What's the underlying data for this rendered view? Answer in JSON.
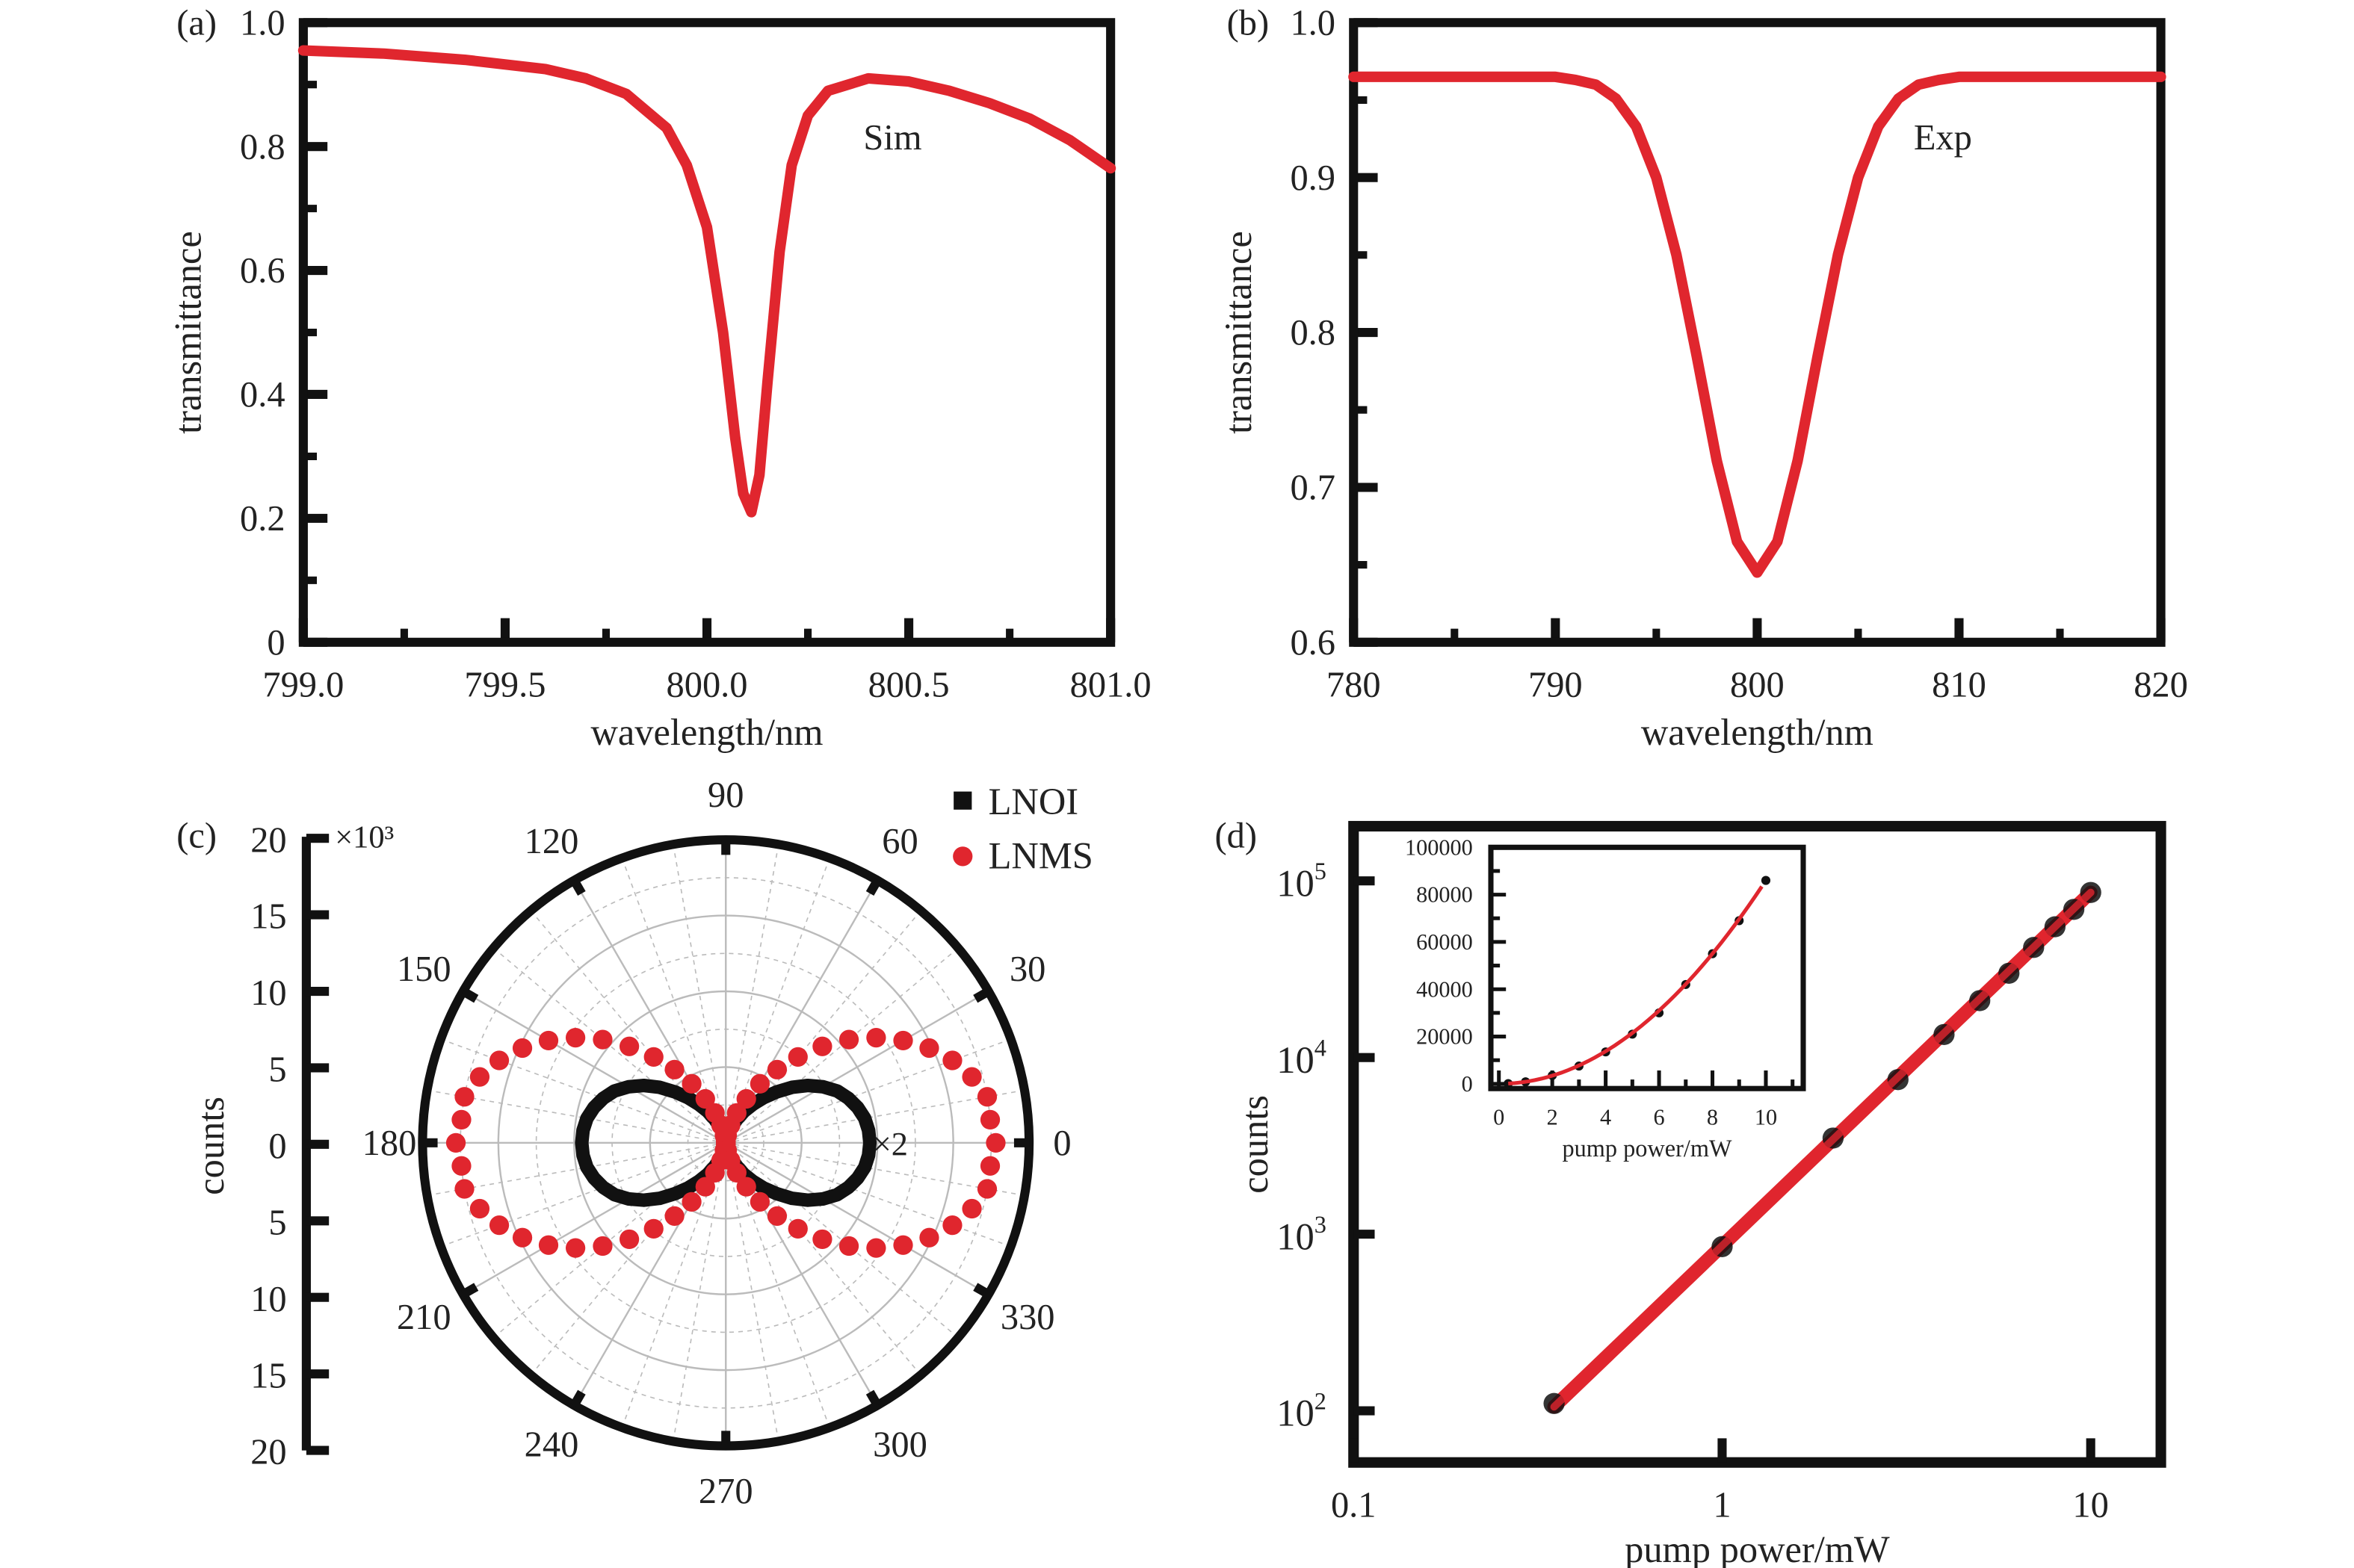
{
  "colors": {
    "curve": "#e0262e",
    "axis": "#111111",
    "marker_black": "#111111",
    "marker_red": "#e0262e",
    "grid": "#bbbbbb"
  },
  "chart_data": [
    {
      "id": "a",
      "panel_label": "(a)",
      "type": "line",
      "xlabel": "wavelength/nm",
      "ylabel": "transmittance",
      "annotation": "Sim",
      "xlim": [
        799.0,
        801.0
      ],
      "ylim": [
        0,
        1.0
      ],
      "xticks": [
        {
          "v": 799.0,
          "label": "799.0"
        },
        {
          "v": 799.5,
          "label": "799.5"
        },
        {
          "v": 800.0,
          "label": "800.0"
        },
        {
          "v": 800.5,
          "label": "800.5"
        },
        {
          "v": 801.0,
          "label": "801.0"
        }
      ],
      "xminor": [
        799.25,
        799.75,
        800.25,
        800.75
      ],
      "yticks": [
        {
          "v": 0,
          "label": "0"
        },
        {
          "v": 0.2,
          "label": "0.2"
        },
        {
          "v": 0.4,
          "label": "0.4"
        },
        {
          "v": 0.6,
          "label": "0.6"
        },
        {
          "v": 0.8,
          "label": "0.8"
        },
        {
          "v": 1.0,
          "label": "1.0"
        }
      ],
      "yminor": [
        0.1,
        0.3,
        0.5,
        0.7,
        0.9
      ],
      "x": [
        799.0,
        799.2,
        799.4,
        799.6,
        799.7,
        799.8,
        799.9,
        799.95,
        800.0,
        800.04,
        800.07,
        800.09,
        800.11,
        800.13,
        800.15,
        800.18,
        800.21,
        800.25,
        800.3,
        800.4,
        800.5,
        800.6,
        800.7,
        800.8,
        800.9,
        801.0
      ],
      "y": [
        0.955,
        0.95,
        0.94,
        0.925,
        0.91,
        0.885,
        0.83,
        0.77,
        0.67,
        0.5,
        0.33,
        0.24,
        0.21,
        0.27,
        0.42,
        0.63,
        0.77,
        0.85,
        0.89,
        0.91,
        0.905,
        0.89,
        0.87,
        0.845,
        0.81,
        0.765
      ]
    },
    {
      "id": "b",
      "panel_label": "(b)",
      "type": "line",
      "xlabel": "wavelength/nm",
      "ylabel": "transmittance",
      "annotation": "Exp",
      "xlim": [
        780,
        820
      ],
      "ylim": [
        0.6,
        1.0
      ],
      "xticks": [
        {
          "v": 780,
          "label": "780"
        },
        {
          "v": 790,
          "label": "790"
        },
        {
          "v": 800,
          "label": "800"
        },
        {
          "v": 810,
          "label": "810"
        },
        {
          "v": 820,
          "label": "820"
        }
      ],
      "xminor": [
        785,
        795,
        805,
        815
      ],
      "yticks": [
        {
          "v": 0.6,
          "label": "0.6"
        },
        {
          "v": 0.7,
          "label": "0.7"
        },
        {
          "v": 0.8,
          "label": "0.8"
        },
        {
          "v": 0.9,
          "label": "0.9"
        },
        {
          "v": 1.0,
          "label": "1.0"
        }
      ],
      "yminor": [
        0.65,
        0.75,
        0.85,
        0.95
      ],
      "x": [
        780,
        788,
        790,
        791,
        792,
        793,
        794,
        795,
        796,
        797,
        798,
        799,
        800,
        801,
        802,
        803,
        804,
        805,
        806,
        807,
        808,
        809,
        810,
        812,
        820
      ],
      "y": [
        0.965,
        0.965,
        0.965,
        0.963,
        0.96,
        0.951,
        0.933,
        0.9,
        0.85,
        0.785,
        0.717,
        0.665,
        0.645,
        0.665,
        0.717,
        0.785,
        0.85,
        0.9,
        0.933,
        0.951,
        0.96,
        0.963,
        0.965,
        0.965,
        0.965
      ]
    },
    {
      "id": "c",
      "panel_label": "(c)",
      "type": "polar",
      "ylabel": "counts",
      "radial_unit": "×10³",
      "scale_note": "×2",
      "rlim": [
        0,
        20
      ],
      "radial_axis_labels": [
        "20",
        "15",
        "10",
        "5",
        "0",
        "5",
        "10",
        "15",
        "20"
      ],
      "angle_labels": [
        {
          "v": 0,
          "label": "0"
        },
        {
          "v": 30,
          "label": "30"
        },
        {
          "v": 60,
          "label": "60"
        },
        {
          "v": 90,
          "label": "90"
        },
        {
          "v": 120,
          "label": "120"
        },
        {
          "v": 150,
          "label": "150"
        },
        {
          "v": 180,
          "label": "180"
        },
        {
          "v": 210,
          "label": "210"
        },
        {
          "v": 240,
          "label": "240"
        },
        {
          "v": 270,
          "label": "270"
        },
        {
          "v": 300,
          "label": "300"
        },
        {
          "v": 330,
          "label": "330"
        }
      ],
      "legend": [
        {
          "name": "LNOI",
          "marker": "square"
        },
        {
          "name": "LNMS",
          "marker": "circle"
        }
      ],
      "legend_position": "top-right",
      "angles_step_deg": 5,
      "series": [
        {
          "name": "LNOI",
          "quarter_values": [
            9.5,
            9.45,
            9.3,
            9.0,
            8.6,
            8.1,
            7.4,
            6.6,
            5.7,
            4.75,
            3.9,
            3.1,
            2.4,
            1.7,
            1.1,
            0.64,
            0.28,
            0.07,
            0
          ]
        },
        {
          "name": "LNMS",
          "quarter_values": [
            17.8,
            17.5,
            17.5,
            16.8,
            15.9,
            14.8,
            13.5,
            12.1,
            10.6,
            9.0,
            7.4,
            5.9,
            4.5,
            3.2,
            2.1,
            1.2,
            0.5,
            0.1,
            0
          ]
        }
      ]
    },
    {
      "id": "d",
      "panel_label": "(d)",
      "type": "scatter",
      "xscale": "log",
      "yscale": "log",
      "xlabel": "pump power/mW",
      "ylabel": "counts",
      "xlim": [
        0.1,
        15.5
      ],
      "ylim": [
        51,
        204000
      ],
      "xticks": [
        {
          "v": 0.1,
          "label": "0.1"
        },
        {
          "v": 1,
          "label": "1"
        },
        {
          "v": 10,
          "label": "10"
        }
      ],
      "yticks": [
        {
          "v": 100,
          "base": "10",
          "exp": "2"
        },
        {
          "v": 1000,
          "base": "10",
          "exp": "3"
        },
        {
          "v": 10000,
          "base": "10",
          "exp": "4"
        },
        {
          "v": 100000,
          "base": "10",
          "exp": "5"
        }
      ],
      "x": [
        0.35,
        1,
        2,
        3,
        4,
        5,
        6,
        7,
        8,
        9,
        10
      ],
      "y": [
        110,
        850,
        3500,
        7500,
        13500,
        21000,
        30000,
        42000,
        55000,
        69000,
        86000
      ],
      "fit_exponent": 2,
      "inset": {
        "xlabel": "pump power/mW",
        "xlim": [
          -0.3,
          11.4
        ],
        "ylim": [
          -2000,
          100000
        ],
        "xticks": [
          {
            "v": 0,
            "label": "0"
          },
          {
            "v": 2,
            "label": "2"
          },
          {
            "v": 4,
            "label": "4"
          },
          {
            "v": 6,
            "label": "6"
          },
          {
            "v": 8,
            "label": "8"
          },
          {
            "v": 10,
            "label": "10"
          }
        ],
        "yticks": [
          {
            "v": 0,
            "label": "0"
          },
          {
            "v": 20000,
            "label": "20000"
          },
          {
            "v": 40000,
            "label": "40000"
          },
          {
            "v": 60000,
            "label": "60000"
          },
          {
            "v": 80000,
            "label": "80000"
          },
          {
            "v": 100000,
            "label": "100000"
          }
        ]
      }
    }
  ]
}
